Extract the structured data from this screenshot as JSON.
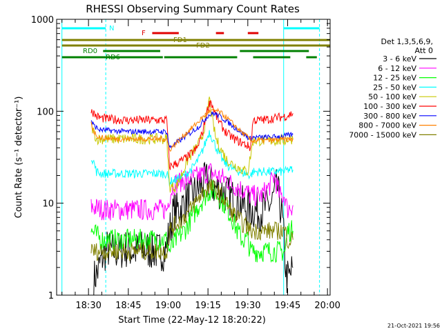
{
  "chart_data": {
    "type": "line",
    "title": "RHESSI Observing Summary Count Rates",
    "xlabel": "Start Time (22-May-12 18:20:22)",
    "ylabel": "Count Rate (s⁻¹ detector⁻¹)",
    "yscale": "log",
    "ylim": [
      1,
      1000
    ],
    "xlim_minutes": [
      -2,
      101
    ],
    "x_ticks": [
      {
        "label": "18:30",
        "minute": 10
      },
      {
        "label": "18:45",
        "minute": 25
      },
      {
        "label": "19:00",
        "minute": 40
      },
      {
        "label": "19:15",
        "minute": 55
      },
      {
        "label": "19:30",
        "minute": 70
      },
      {
        "label": "19:45",
        "minute": 85
      },
      {
        "label": "20:00",
        "minute": 100
      }
    ],
    "y_ticks": [
      {
        "label": "1",
        "value": 1
      },
      {
        "label": "10",
        "value": 10
      },
      {
        "label": "100",
        "value": 100
      },
      {
        "label": "1000",
        "value": 1000
      }
    ],
    "legend_title": [
      "Det 1,3,5,6,9,",
      "Att 0"
    ],
    "series": [
      {
        "name": "3 - 6 keV",
        "color": "#000000",
        "x": [
          12,
          13.5,
          15,
          16,
          17,
          19,
          21,
          24,
          27,
          31,
          35,
          39,
          42,
          45,
          47,
          49,
          51,
          53,
          55,
          57,
          59,
          61,
          63,
          65,
          67,
          69,
          71,
          72,
          74,
          77,
          79,
          81,
          83,
          84.5,
          85.5,
          87
        ],
        "y": [
          1.5,
          1.8,
          2.5,
          2.8,
          3.2,
          3,
          3,
          3.2,
          3,
          3.2,
          3,
          3,
          8,
          9,
          11,
          12,
          14,
          16,
          18,
          15,
          14,
          13,
          12,
          11,
          10,
          9,
          8.5,
          8.5,
          8,
          9,
          10,
          15,
          7,
          1.6,
          1.5,
          2
        ]
      },
      {
        "name": "6 - 12 keV",
        "color": "#ff00ff",
        "x": [
          11,
          12,
          16,
          20,
          25,
          30,
          35,
          39.5,
          40.5,
          42,
          44,
          46,
          48,
          50,
          52,
          54,
          56,
          58,
          60,
          62,
          64,
          66,
          68,
          70,
          71,
          72,
          75,
          78,
          80,
          82,
          84,
          84.8,
          85.6,
          87
        ],
        "y": [
          9,
          9,
          8.5,
          8.5,
          8.5,
          8.5,
          8.5,
          8.5,
          12,
          16,
          17,
          18,
          18,
          19,
          20,
          21,
          22,
          20,
          19,
          18,
          16,
          15,
          14,
          13,
          12,
          12,
          12,
          15,
          20,
          12,
          12,
          8.5,
          9,
          9.5
        ]
      },
      {
        "name": "12 - 25 keV",
        "color": "#00ff00",
        "x": [
          11,
          15,
          20,
          25,
          30,
          35,
          39.5,
          40.5,
          43,
          46,
          49,
          52,
          54,
          56,
          58,
          60,
          62,
          64,
          66,
          68,
          70,
          71,
          73,
          76,
          80,
          84,
          85,
          87
        ],
        "y": [
          5,
          4,
          4,
          4,
          4,
          4,
          4,
          3,
          4,
          5,
          7,
          10,
          12,
          14,
          13,
          11,
          9,
          7,
          5,
          4,
          4,
          3,
          3,
          3,
          3,
          3,
          5,
          5
        ]
      },
      {
        "name": "25 - 50 keV",
        "color": "#00ffff",
        "x": [
          11,
          12,
          13,
          15,
          20,
          25,
          30,
          35,
          39.5,
          40.5,
          43,
          45,
          47,
          48.5,
          50,
          52,
          54,
          55.5,
          57,
          59,
          61,
          63,
          65,
          67,
          69,
          71,
          72,
          75,
          80,
          84,
          85,
          87
        ],
        "y": [
          32,
          28,
          22,
          21,
          21,
          21,
          21,
          21,
          21,
          17,
          18,
          19,
          21,
          23,
          26,
          32,
          45,
          60,
          48,
          35,
          28,
          25,
          23,
          22,
          21,
          20,
          22,
          22,
          22,
          22,
          23,
          23
        ]
      },
      {
        "name": "50 - 100 keV",
        "color": "#c8c800",
        "x": [
          11,
          12,
          13,
          15,
          20,
          25,
          30,
          35,
          39.5,
          40.5,
          43,
          45,
          47,
          49,
          51,
          53,
          54.5,
          55.5,
          56.5,
          58,
          60,
          62,
          64,
          66,
          68,
          70,
          72,
          75,
          80,
          84,
          85,
          87
        ],
        "y": [
          70,
          60,
          50,
          50,
          50,
          50,
          50,
          50,
          50,
          15,
          15,
          20,
          28,
          35,
          42,
          55,
          90,
          140,
          85,
          50,
          38,
          30,
          27,
          25,
          23,
          22,
          48,
          48,
          48,
          48,
          50,
          50
        ]
      },
      {
        "name": "100 - 300 keV",
        "color": "#ff0000",
        "x": [
          11,
          12,
          13,
          15,
          18,
          21,
          25,
          30,
          35,
          39.5,
          40.5,
          43,
          46,
          49,
          51,
          53,
          55,
          56,
          58,
          60,
          62,
          64,
          66,
          68,
          70,
          71,
          72,
          75,
          78,
          80,
          82,
          84,
          85,
          87
        ],
        "y": [
          105,
          95,
          88,
          84,
          82,
          81,
          80,
          80,
          80,
          80,
          25,
          27,
          30,
          35,
          40,
          60,
          110,
          130,
          90,
          70,
          58,
          52,
          48,
          45,
          42,
          40,
          80,
          80,
          82,
          84,
          86,
          88,
          90,
          95
        ]
      },
      {
        "name": "300 - 800 keV",
        "color": "#0000ff",
        "x": [
          11,
          12,
          14,
          17,
          20,
          25,
          30,
          35,
          39.5,
          40.5,
          43,
          46,
          49,
          52,
          55,
          57,
          59,
          61,
          63,
          65,
          67,
          69,
          71,
          72,
          75,
          78,
          81,
          84,
          86,
          87
        ],
        "y": [
          80,
          70,
          63,
          62,
          61,
          60,
          60,
          60,
          60,
          40,
          45,
          52,
          60,
          70,
          90,
          95,
          90,
          82,
          74,
          67,
          60,
          55,
          50,
          52,
          52,
          52,
          53,
          54,
          55,
          56
        ]
      },
      {
        "name": "800 - 7000 keV",
        "color": "#ff8000",
        "x": [
          11,
          12,
          14,
          17,
          20,
          25,
          30,
          35,
          39.5,
          40.5,
          43,
          46,
          49,
          52,
          55,
          58,
          60,
          62,
          64,
          66,
          68,
          70,
          71,
          72,
          75,
          78,
          81,
          84,
          86,
          87
        ],
        "y": [
          74,
          60,
          52,
          51,
          50,
          50,
          50,
          50,
          50,
          38,
          45,
          55,
          66,
          80,
          98,
          102,
          95,
          85,
          75,
          66,
          58,
          52,
          48,
          48,
          48,
          48,
          49,
          49,
          50,
          50
        ]
      },
      {
        "name": "7000 - 15000 keV",
        "color": "#808000",
        "x": [
          11,
          14,
          17,
          20,
          25,
          30,
          35,
          39.5,
          40.5,
          43,
          46,
          49,
          52,
          54,
          56,
          58,
          60,
          62,
          64,
          66,
          68,
          70,
          71,
          73,
          77,
          81,
          84,
          85,
          87
        ],
        "y": [
          3,
          3,
          3,
          3,
          3,
          3,
          3,
          3,
          5,
          6,
          7,
          9,
          12,
          14,
          15,
          14,
          12,
          10,
          8,
          7,
          6,
          5.5,
          5,
          5,
          5,
          5,
          5,
          4,
          4
        ]
      }
    ],
    "annotations": {
      "vertical_lines": [
        {
          "minute": 0,
          "style": "solid",
          "color": "#00ffff"
        },
        {
          "minute": 16.5,
          "style": "dashed",
          "color": "#00ffff"
        },
        {
          "minute": 83.5,
          "style": "solid",
          "color": "#00ffff"
        },
        {
          "minute": 97,
          "style": "dashed",
          "color": "#00ffff"
        }
      ],
      "bars": [
        {
          "label": "N",
          "color": "#00ffff",
          "segments": [
            [
              0,
              16.5
            ],
            [
              83.5,
              97
            ]
          ],
          "row": "N"
        },
        {
          "label": "F",
          "color": "#e00000",
          "segments": [
            [
              34,
              44
            ],
            [
              58,
              61
            ],
            [
              70,
              74
            ]
          ],
          "row": "F"
        },
        {
          "label": "FD1",
          "color": "#808000",
          "segments": [
            [
              0,
              101
            ]
          ],
          "row": "FD1"
        },
        {
          "label": "FD2",
          "color": "#808000",
          "segments": [
            [
              0,
              101
            ]
          ],
          "row": "FD2"
        },
        {
          "label": "RD0",
          "color": "#008000",
          "segments": [
            [
              15.5,
              37
            ],
            [
              67,
              93
            ]
          ],
          "row": "RD0"
        },
        {
          "label": "RD6",
          "color": "#008000",
          "segments": [
            [
              0,
              38
            ],
            [
              38.5,
              66
            ],
            [
              72,
              86
            ],
            [
              92,
              96
            ]
          ],
          "row": "RD6"
        }
      ]
    },
    "footer_date": "21-Oct-2021 19:56"
  }
}
